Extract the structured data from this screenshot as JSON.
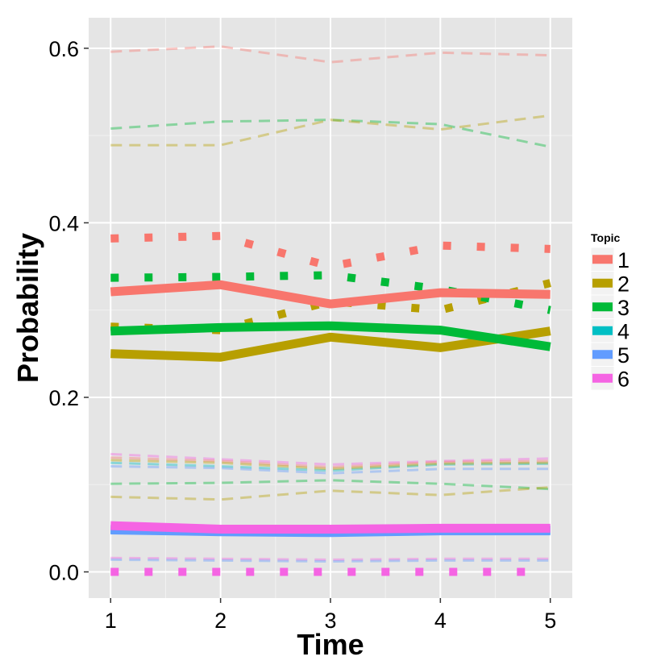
{
  "chart_data": {
    "type": "line",
    "title": "",
    "xlabel": "Time",
    "ylabel": "Probability",
    "x": [
      1,
      2,
      3,
      4,
      5
    ],
    "xlim": [
      0.8,
      5.2
    ],
    "ylim": [
      -0.03,
      0.635
    ],
    "x_ticks": [
      {
        "value": 1,
        "label": "1"
      },
      {
        "value": 2,
        "label": "2"
      },
      {
        "value": 3,
        "label": "3"
      },
      {
        "value": 4,
        "label": "4"
      },
      {
        "value": 5,
        "label": "5"
      }
    ],
    "y_ticks": [
      {
        "value": 0.0,
        "label": "0.0"
      },
      {
        "value": 0.2,
        "label": "0.2"
      },
      {
        "value": 0.4,
        "label": "0.4"
      },
      {
        "value": 0.6,
        "label": "0.6"
      }
    ],
    "grid": true,
    "legend": {
      "title": "Topic",
      "position": "right",
      "entries": [
        {
          "label": "1",
          "color": "#F8766D"
        },
        {
          "label": "2",
          "color": "#B79F00"
        },
        {
          "label": "3",
          "color": "#00BA38"
        },
        {
          "label": "4",
          "color": "#00BFC4"
        },
        {
          "label": "5",
          "color": "#619CFF"
        },
        {
          "label": "6",
          "color": "#F564E3"
        }
      ]
    },
    "line_styles": {
      "solid": "estimate",
      "dotted": "alternate estimate",
      "dashed": "interval bounds"
    },
    "series": [
      {
        "topic": "1",
        "style": "solid",
        "values": [
          0.321,
          0.329,
          0.307,
          0.32,
          0.318
        ]
      },
      {
        "topic": "2",
        "style": "solid",
        "values": [
          0.25,
          0.246,
          0.269,
          0.257,
          0.276
        ]
      },
      {
        "topic": "3",
        "style": "solid",
        "values": [
          0.276,
          0.28,
          0.282,
          0.277,
          0.258
        ]
      },
      {
        "topic": "4",
        "style": "solid",
        "values": [
          0.049,
          0.047,
          0.046,
          0.048,
          0.048
        ]
      },
      {
        "topic": "5",
        "style": "solid",
        "values": [
          0.048,
          0.046,
          0.045,
          0.047,
          0.047
        ]
      },
      {
        "topic": "6",
        "style": "solid",
        "values": [
          0.053,
          0.049,
          0.049,
          0.05,
          0.05
        ]
      },
      {
        "topic": "1",
        "style": "dotted",
        "values": [
          0.382,
          0.385,
          0.35,
          0.374,
          0.37
        ]
      },
      {
        "topic": "2",
        "style": "dotted",
        "values": [
          0.281,
          0.277,
          0.31,
          0.3,
          0.331
        ]
      },
      {
        "topic": "3",
        "style": "dotted",
        "values": [
          0.337,
          0.338,
          0.34,
          0.324,
          0.3
        ]
      },
      {
        "topic": "6",
        "style": "dotted",
        "values": [
          0.0,
          0.0,
          0.0,
          0.0,
          0.0
        ]
      },
      {
        "topic": "1",
        "style": "dashed",
        "values": [
          0.596,
          0.602,
          0.584,
          0.595,
          0.592
        ]
      },
      {
        "topic": "3",
        "style": "dashed",
        "values": [
          0.508,
          0.516,
          0.518,
          0.513,
          0.487
        ]
      },
      {
        "topic": "2",
        "style": "dashed",
        "values": [
          0.489,
          0.489,
          0.518,
          0.507,
          0.523
        ]
      },
      {
        "topic": "6",
        "style": "dashed",
        "values": [
          0.135,
          0.129,
          0.123,
          0.127,
          0.13
        ]
      },
      {
        "topic": "1",
        "style": "dashed",
        "values": [
          0.131,
          0.127,
          0.12,
          0.126,
          0.127
        ]
      },
      {
        "topic": "4",
        "style": "dashed",
        "values": [
          0.125,
          0.121,
          0.116,
          0.123,
          0.124
        ]
      },
      {
        "topic": "2",
        "style": "dashed",
        "values": [
          0.128,
          0.125,
          0.118,
          0.124,
          0.125
        ]
      },
      {
        "topic": "5",
        "style": "dashed",
        "values": [
          0.121,
          0.119,
          0.113,
          0.118,
          0.118
        ]
      },
      {
        "topic": "3",
        "style": "dashed",
        "values": [
          0.101,
          0.102,
          0.105,
          0.101,
          0.095
        ]
      },
      {
        "topic": "2",
        "style": "dashed",
        "values": [
          0.086,
          0.083,
          0.093,
          0.088,
          0.097
        ]
      },
      {
        "topic": "6",
        "style": "dashed",
        "values": [
          0.016,
          0.015,
          0.014,
          0.015,
          0.015
        ]
      },
      {
        "topic": "5",
        "style": "dashed",
        "values": [
          0.014,
          0.013,
          0.012,
          0.013,
          0.013
        ]
      }
    ]
  }
}
